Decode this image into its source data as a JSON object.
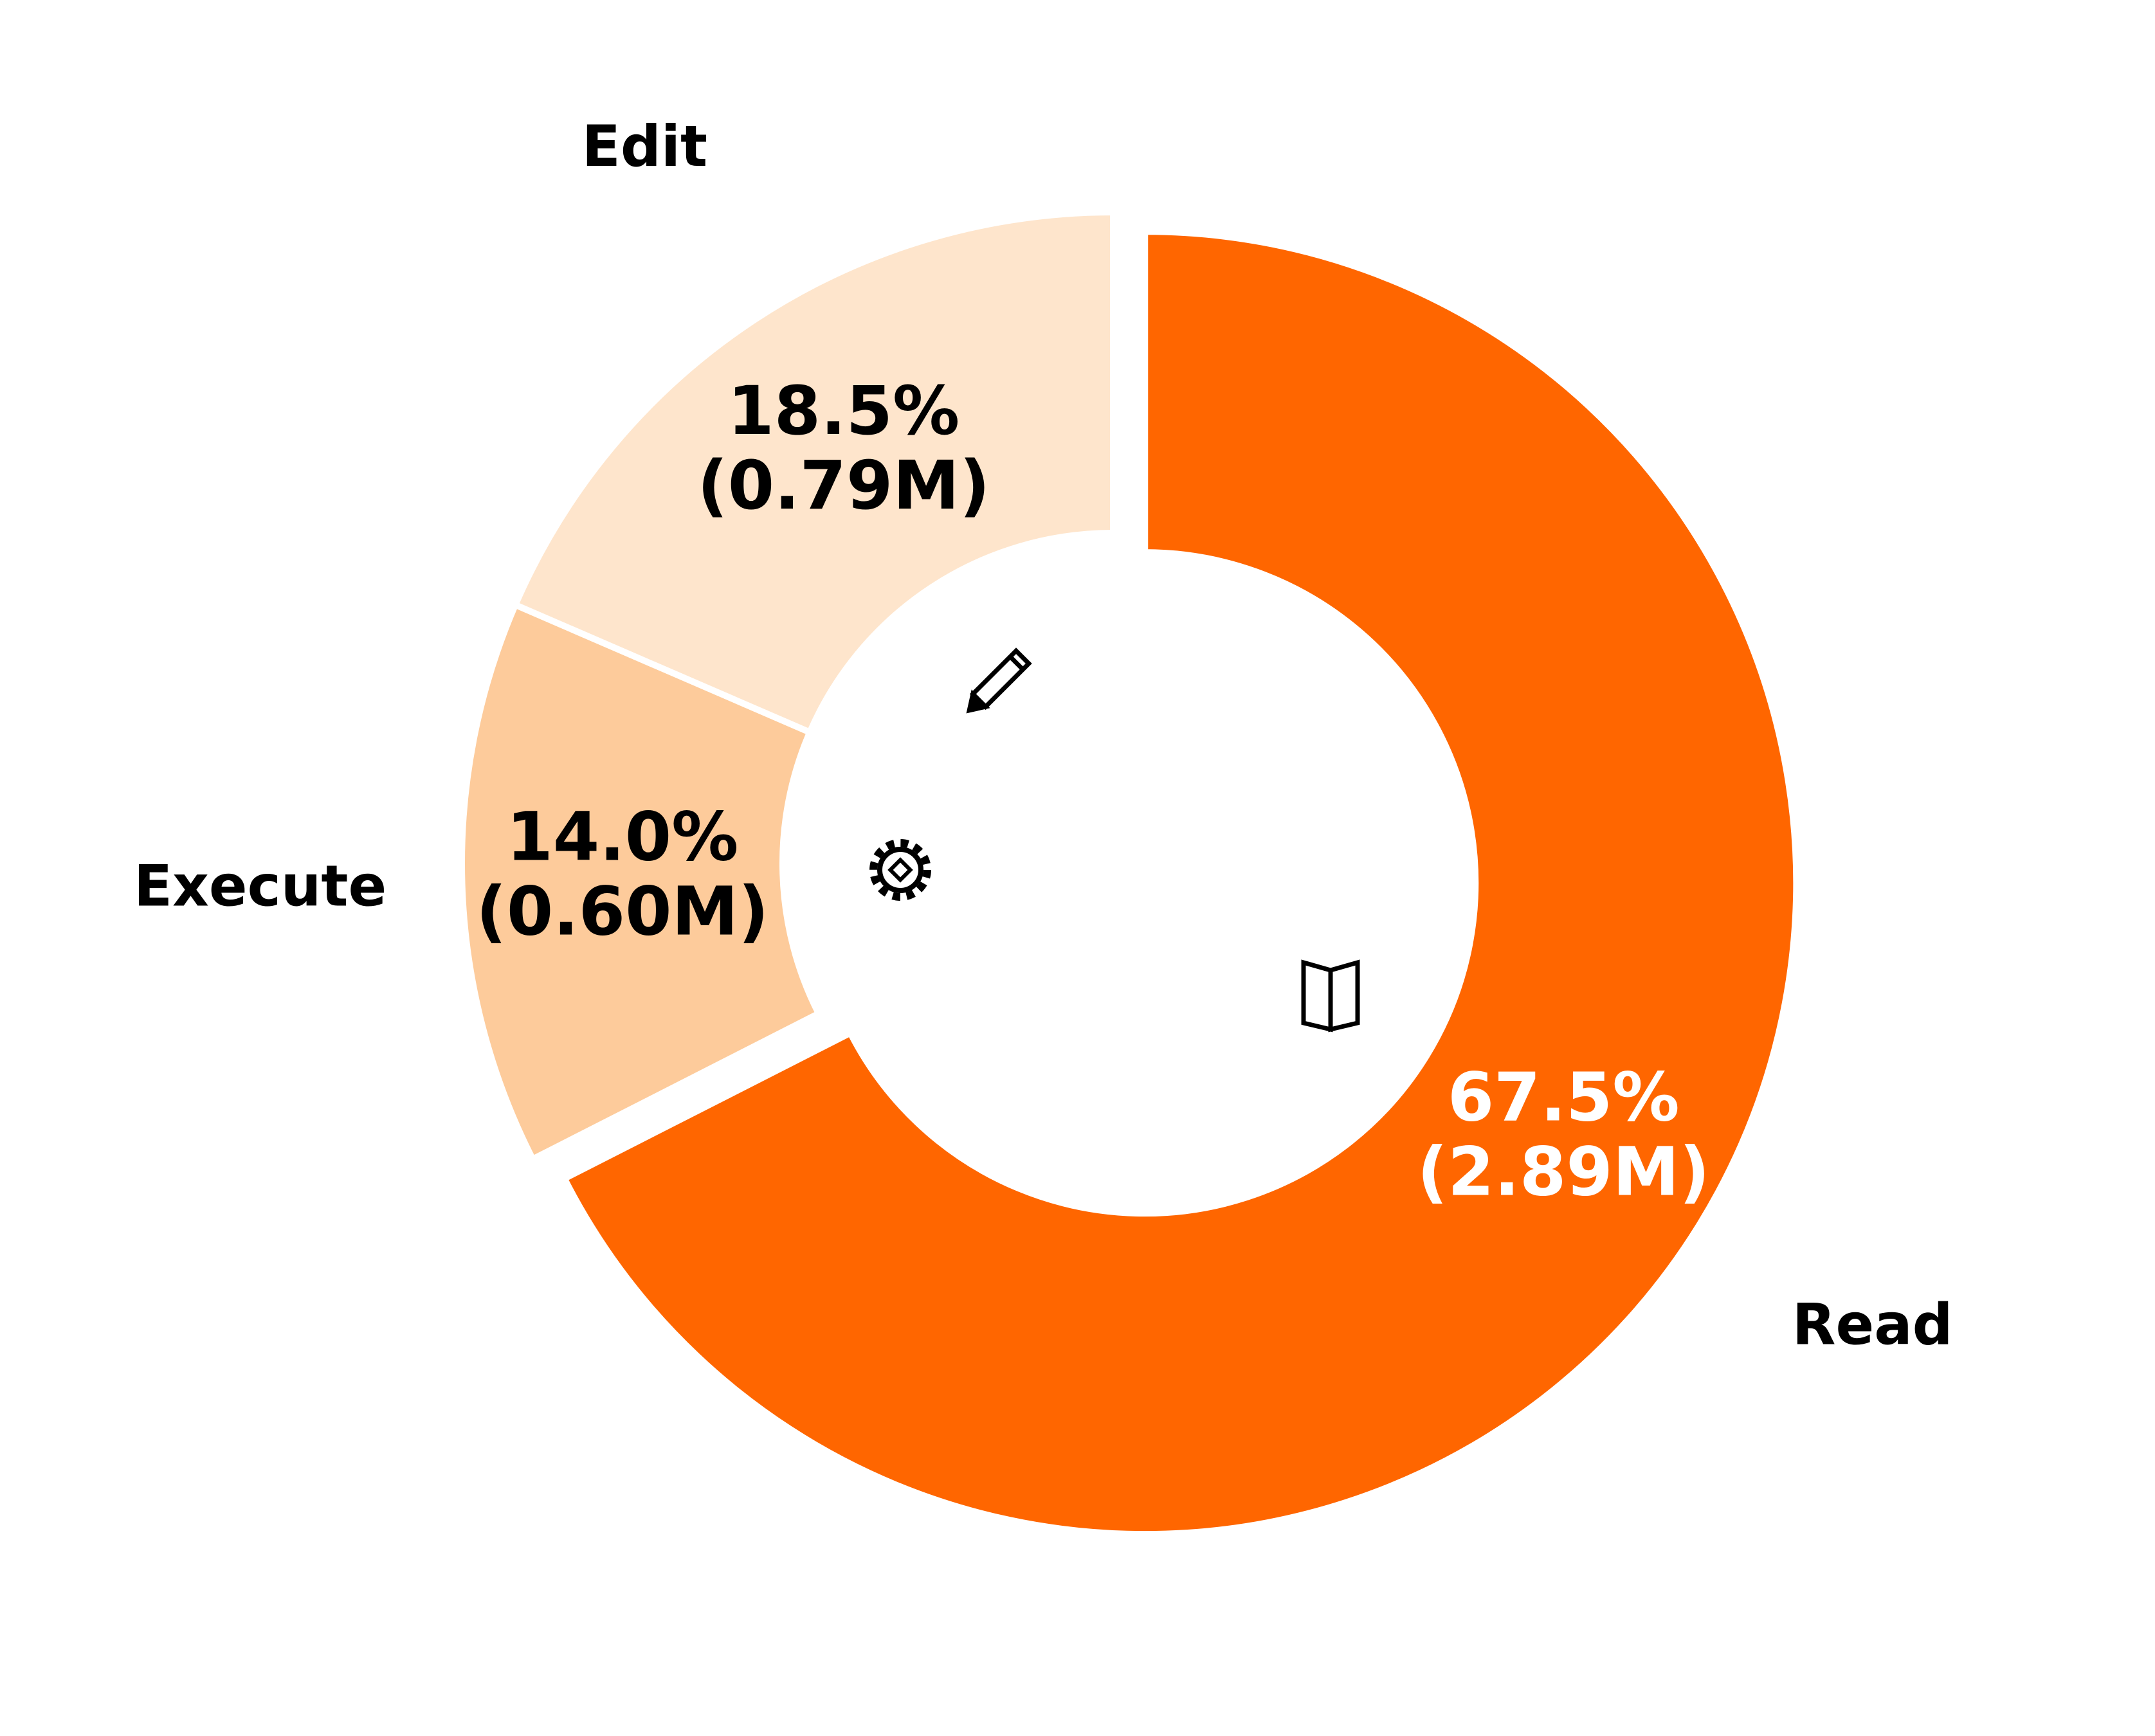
{
  "chart_data": {
    "type": "donut",
    "categories": [
      "Read",
      "Execute",
      "Edit"
    ],
    "values": [
      67.5,
      14.0,
      18.5
    ],
    "value_labels": [
      "67.5%",
      "14.0%",
      "18.5%"
    ],
    "counts": [
      2890000,
      600000,
      790000
    ],
    "count_labels": [
      "(2.89M)",
      "(0.60M)",
      "(0.79M)"
    ],
    "colors": [
      "#ff6600",
      "#fdcb9b",
      "#fee5cc"
    ],
    "exploded": [
      "Read"
    ]
  }
}
